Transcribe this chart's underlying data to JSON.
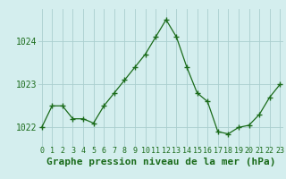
{
  "hours": [
    0,
    1,
    2,
    3,
    4,
    5,
    6,
    7,
    8,
    9,
    10,
    11,
    12,
    13,
    14,
    15,
    16,
    17,
    18,
    19,
    20,
    21,
    22,
    23
  ],
  "pressure": [
    1022.0,
    1022.5,
    1022.5,
    1022.2,
    1022.2,
    1022.1,
    1022.5,
    1022.8,
    1023.1,
    1023.4,
    1023.7,
    1024.1,
    1024.5,
    1024.1,
    1023.4,
    1022.8,
    1022.6,
    1021.9,
    1021.85,
    1022.0,
    1022.05,
    1022.3,
    1022.7,
    1023.0
  ],
  "line_color": "#1a6b1a",
  "marker": "+",
  "marker_size": 4,
  "marker_linewidth": 1.0,
  "bg_color": "#d4eeee",
  "grid_color": "#aacece",
  "title": "Graphe pression niveau de la mer (hPa)",
  "title_fontsize": 8,
  "ytick_fontsize": 7,
  "xtick_fontsize": 6,
  "yticks": [
    1022,
    1023,
    1024
  ],
  "xticks": [
    0,
    1,
    2,
    3,
    4,
    5,
    6,
    7,
    8,
    9,
    10,
    11,
    12,
    13,
    14,
    15,
    16,
    17,
    18,
    19,
    20,
    21,
    22,
    23
  ],
  "ylim": [
    1021.55,
    1024.75
  ],
  "xlim": [
    -0.3,
    23.3
  ]
}
